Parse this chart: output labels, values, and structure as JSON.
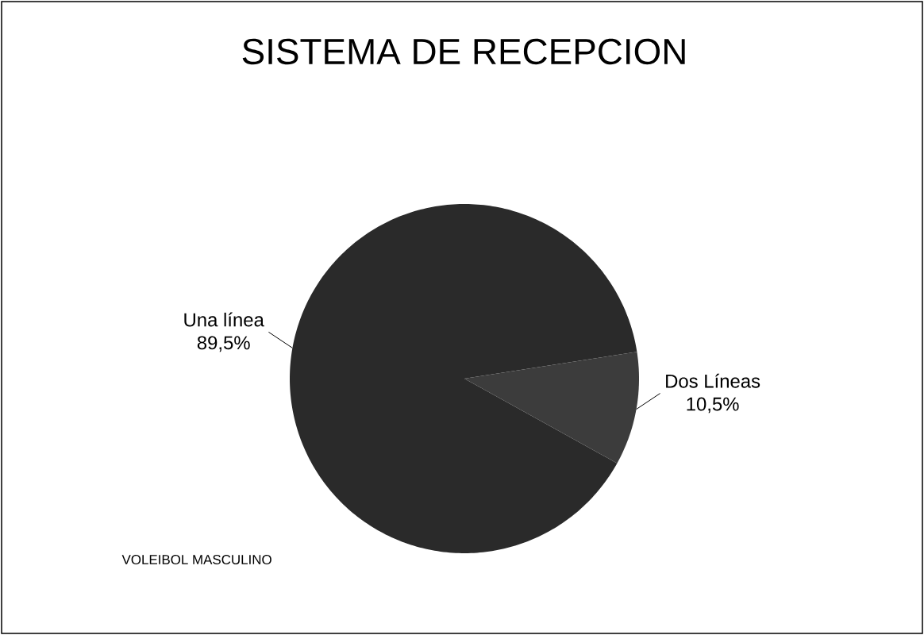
{
  "chart_data": {
    "type": "pie",
    "title": "SISTEMA DE RECEPCION",
    "categories": [
      "Una línea",
      "Dos Líneas"
    ],
    "values": [
      89.5,
      10.5
    ],
    "value_labels": [
      "89,5%",
      "10,5%"
    ],
    "colors": [
      "#2a2a2a",
      "#3c3c3c"
    ],
    "annotations": [
      "VOLEIBOL MASCULINO"
    ]
  }
}
